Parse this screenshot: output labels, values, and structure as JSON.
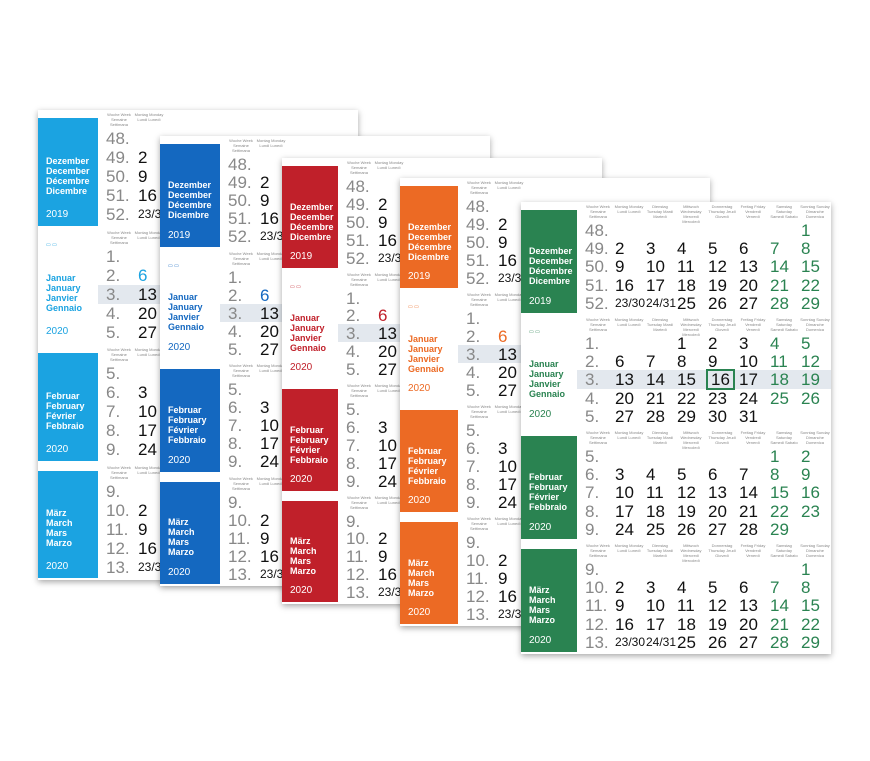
{
  "months": {
    "dec": [
      "Dezember",
      "December",
      "Décembre",
      "Dicembre"
    ],
    "jan": [
      "Januar",
      "January",
      "Janvier",
      "Gennaio"
    ],
    "feb": [
      "Februar",
      "February",
      "Février",
      "Febbraio"
    ],
    "mar": [
      "März",
      "March",
      "Mars",
      "Marzo"
    ]
  },
  "years": {
    "y2019": "2019",
    "y2020": "2020"
  },
  "header_cols": [
    "Woche Week Semaine Settimana",
    "Montag Monday Lundi Lunedì",
    "Dienstag Tuesday Mardi Martedì",
    "Mittwoch Wednesday Mercredi Mercoledì",
    "Donnerstag Thursday Jeudi Giovedì",
    "Freitag Friday Vendredi Venerdì",
    "Samstag Saturday Samedi Sabato",
    "Sonntag Sunday Dimanche Domenica"
  ],
  "colors": {
    "cyan": "#1ba3e1",
    "blue": "#1468c0",
    "red": "#c0202a",
    "orange": "#ec6a24",
    "green": "#2a8351"
  },
  "weeks": {
    "dec": [
      "48.",
      "49.",
      "50.",
      "51.",
      "52."
    ],
    "jan": [
      "1.",
      "2.",
      "3.",
      "4.",
      "5."
    ],
    "feb": [
      "5.",
      "6.",
      "7.",
      "8.",
      "9."
    ],
    "mar": [
      "9.",
      "10.",
      "11.",
      "12.",
      "13."
    ]
  },
  "mondays": {
    "dec": [
      "",
      "2",
      "9",
      "16",
      "23/30"
    ],
    "jan": [
      "",
      "6",
      "13",
      "20",
      "27"
    ],
    "feb": [
      "",
      "3",
      "10",
      "17",
      "24"
    ],
    "mar": [
      "",
      "2",
      "9",
      "16",
      "23/30"
    ]
  },
  "green": {
    "dec": [
      [
        "",
        "",
        "",
        "",
        "",
        "",
        "1"
      ],
      [
        "2",
        "3",
        "4",
        "5",
        "6",
        "7",
        "8"
      ],
      [
        "9",
        "10",
        "11",
        "12",
        "13",
        "14",
        "15"
      ],
      [
        "16",
        "17",
        "18",
        "19",
        "20",
        "21",
        "22"
      ],
      [
        "23/30",
        "24/31",
        "25",
        "26",
        "27",
        "28",
        "29"
      ]
    ],
    "jan": [
      [
        "",
        "",
        "1",
        "2",
        "3",
        "4",
        "5"
      ],
      [
        "6",
        "7",
        "8",
        "9",
        "10",
        "11",
        "12"
      ],
      [
        "13",
        "14",
        "15",
        "16",
        "17",
        "18",
        "19"
      ],
      [
        "20",
        "21",
        "22",
        "23",
        "24",
        "25",
        "26"
      ],
      [
        "27",
        "28",
        "29",
        "30",
        "31",
        "",
        ""
      ]
    ],
    "feb": [
      [
        "",
        "",
        "",
        "",
        "",
        "1",
        "2"
      ],
      [
        "3",
        "4",
        "5",
        "6",
        "7",
        "8",
        "9"
      ],
      [
        "10",
        "11",
        "12",
        "13",
        "14",
        "15",
        "16"
      ],
      [
        "17",
        "18",
        "19",
        "20",
        "21",
        "22",
        "23"
      ],
      [
        "24",
        "25",
        "26",
        "27",
        "28",
        "29",
        ""
      ]
    ],
    "mar": [
      [
        "",
        "",
        "",
        "",
        "",
        "",
        "1"
      ],
      [
        "2",
        "3",
        "4",
        "5",
        "6",
        "7",
        "8"
      ],
      [
        "9",
        "10",
        "11",
        "12",
        "13",
        "14",
        "15"
      ],
      [
        "16",
        "17",
        "18",
        "19",
        "20",
        "21",
        "22"
      ],
      [
        "23/30",
        "24/31",
        "25",
        "26",
        "27",
        "28",
        "29"
      ]
    ]
  },
  "today": "16"
}
